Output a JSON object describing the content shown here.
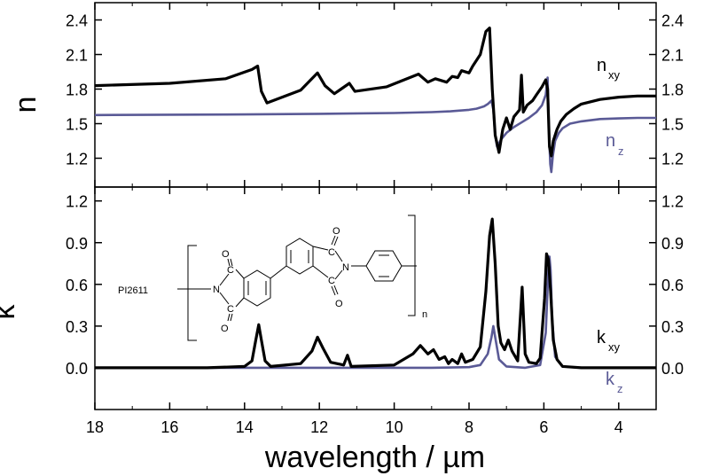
{
  "chart_data": [
    {
      "type": "line",
      "panel": "top",
      "ylabel": "n",
      "xlim": [
        18,
        3
      ],
      "ylim": [
        0.95,
        2.55
      ],
      "x_ticks": [
        18,
        16,
        14,
        12,
        10,
        8,
        6,
        4
      ],
      "y_ticks": [
        1.2,
        1.5,
        1.8,
        2.1,
        2.4
      ],
      "y_tick_labels": [
        "1.2",
        "1.5",
        "1.8",
        "2.1",
        "2.4"
      ],
      "colors": {
        "xy": "#000000",
        "z": "#5a5a96"
      },
      "series": [
        {
          "name": "n",
          "subscript": "xy",
          "color": "#000000",
          "x": [
            18.0,
            16.0,
            14.5,
            13.8,
            13.65,
            13.55,
            13.4,
            12.5,
            12.05,
            11.85,
            11.6,
            11.2,
            11.05,
            10.2,
            9.35,
            9.1,
            8.9,
            8.6,
            8.45,
            8.3,
            8.2,
            8.0,
            7.9,
            7.7,
            7.55,
            7.45,
            7.38,
            7.3,
            7.2,
            7.1,
            7.0,
            6.9,
            6.8,
            6.65,
            6.6,
            6.55,
            6.45,
            6.3,
            6.2,
            6.05,
            5.95,
            5.9,
            5.85,
            5.8,
            5.75,
            5.65,
            5.55,
            5.4,
            5.2,
            5.0,
            4.5,
            4.0,
            3.5,
            3.0
          ],
          "y": [
            1.83,
            1.85,
            1.89,
            1.97,
            2.0,
            1.78,
            1.68,
            1.79,
            1.94,
            1.83,
            1.76,
            1.85,
            1.78,
            1.82,
            1.93,
            1.86,
            1.89,
            1.86,
            1.91,
            1.9,
            1.96,
            1.94,
            2.0,
            2.1,
            2.3,
            2.33,
            1.8,
            1.4,
            1.25,
            1.45,
            1.55,
            1.45,
            1.56,
            1.62,
            1.92,
            1.6,
            1.66,
            1.7,
            1.75,
            1.82,
            1.88,
            1.8,
            1.3,
            1.22,
            1.35,
            1.45,
            1.52,
            1.58,
            1.63,
            1.67,
            1.71,
            1.73,
            1.74,
            1.74
          ]
        },
        {
          "name": "n",
          "subscript": "z",
          "color": "#5a5a96",
          "x": [
            18.0,
            14.0,
            12.0,
            10.0,
            9.0,
            8.5,
            8.0,
            7.8,
            7.6,
            7.5,
            7.4,
            7.35,
            7.3,
            7.25,
            7.15,
            7.0,
            6.8,
            6.6,
            6.4,
            6.2,
            6.05,
            5.95,
            5.9,
            5.86,
            5.83,
            5.8,
            5.76,
            5.7,
            5.6,
            5.5,
            5.3,
            5.0,
            4.5,
            4.0,
            3.5,
            3.0
          ],
          "y": [
            1.575,
            1.58,
            1.585,
            1.592,
            1.6,
            1.607,
            1.62,
            1.63,
            1.65,
            1.67,
            1.7,
            1.62,
            1.4,
            1.3,
            1.36,
            1.42,
            1.47,
            1.51,
            1.55,
            1.6,
            1.66,
            1.75,
            1.9,
            1.4,
            1.15,
            1.08,
            1.22,
            1.35,
            1.42,
            1.46,
            1.5,
            1.52,
            1.54,
            1.545,
            1.55,
            1.55
          ]
        }
      ]
    },
    {
      "type": "line",
      "panel": "bottom",
      "xlabel": "wavelength / µm",
      "ylabel": "k",
      "xlim": [
        18,
        3
      ],
      "ylim": [
        -0.3,
        1.3
      ],
      "x_ticks": [
        18,
        16,
        14,
        12,
        10,
        8,
        6,
        4
      ],
      "x_tick_labels": [
        "18",
        "16",
        "14",
        "12",
        "10",
        "8",
        "6",
        "4"
      ],
      "y_ticks": [
        0.0,
        0.3,
        0.6,
        0.9,
        1.2
      ],
      "y_tick_labels": [
        "0.0",
        "0.3",
        "0.6",
        "0.9",
        "1.2"
      ],
      "series": [
        {
          "name": "k",
          "subscript": "xy",
          "color": "#000000",
          "x": [
            18.0,
            15.0,
            14.0,
            13.8,
            13.7,
            13.62,
            13.55,
            13.45,
            13.3,
            12.5,
            12.2,
            12.05,
            11.9,
            11.7,
            11.35,
            11.25,
            11.15,
            10.0,
            9.5,
            9.3,
            9.1,
            8.95,
            8.8,
            8.65,
            8.55,
            8.45,
            8.3,
            8.2,
            8.1,
            7.9,
            7.7,
            7.55,
            7.45,
            7.38,
            7.3,
            7.22,
            7.15,
            7.05,
            6.95,
            6.85,
            6.7,
            6.62,
            6.58,
            6.5,
            6.4,
            6.2,
            6.1,
            5.98,
            5.93,
            5.88,
            5.82,
            5.75,
            5.65,
            5.5,
            5.0,
            4.0,
            3.0
          ],
          "y": [
            0.0,
            0.0,
            0.01,
            0.05,
            0.2,
            0.31,
            0.2,
            0.05,
            0.01,
            0.03,
            0.12,
            0.22,
            0.14,
            0.04,
            0.02,
            0.09,
            0.01,
            0.02,
            0.1,
            0.16,
            0.1,
            0.13,
            0.06,
            0.08,
            0.03,
            0.06,
            0.03,
            0.1,
            0.04,
            0.06,
            0.15,
            0.55,
            0.95,
            1.07,
            0.75,
            0.3,
            0.18,
            0.13,
            0.2,
            0.12,
            0.05,
            0.4,
            0.58,
            0.1,
            0.04,
            0.03,
            0.07,
            0.5,
            0.82,
            0.78,
            0.55,
            0.2,
            0.06,
            0.01,
            0.0,
            0.0,
            0.0
          ]
        },
        {
          "name": "k",
          "subscript": "z",
          "color": "#5a5a96",
          "x": [
            18.0,
            12.0,
            9.0,
            8.0,
            7.7,
            7.5,
            7.4,
            7.35,
            7.3,
            7.2,
            7.0,
            6.5,
            6.1,
            5.95,
            5.88,
            5.85,
            5.82,
            5.78,
            5.7,
            5.5,
            5.0,
            3.0
          ],
          "y": [
            0.0,
            0.0,
            0.0,
            0.005,
            0.02,
            0.1,
            0.22,
            0.3,
            0.22,
            0.06,
            0.01,
            0.0,
            0.02,
            0.25,
            0.7,
            0.8,
            0.7,
            0.35,
            0.08,
            0.01,
            0.0,
            0.0
          ]
        }
      ]
    }
  ],
  "annotations": {
    "polymer_name": "PI2611",
    "repeat_subscript": "n",
    "atom_O": "O",
    "atom_C": "C",
    "atom_N": "N"
  }
}
